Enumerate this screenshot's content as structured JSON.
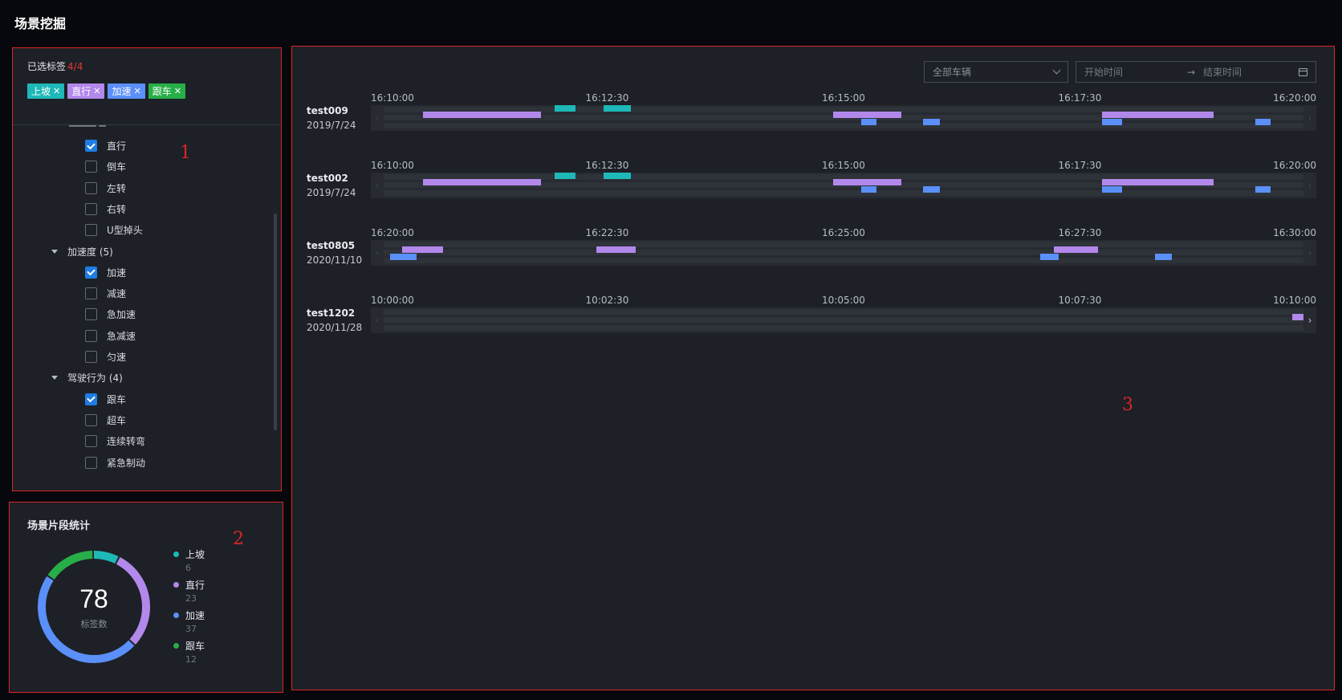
{
  "page": {
    "title": "场景挖掘"
  },
  "colors": {
    "uphill": "#1fb8b8",
    "straight": "#b388eb",
    "accel": "#5b8ff9",
    "follow": "#27ae48",
    "region_border": "#d92626"
  },
  "regions": {
    "r1": "1",
    "r2": "2",
    "r3": "3"
  },
  "filter": {
    "title": "已选标签",
    "count": "4/4",
    "chips": [
      {
        "label": "上坡",
        "color": "#1fb8b8"
      },
      {
        "label": "直行",
        "color": "#b388eb"
      },
      {
        "label": "加速",
        "color": "#5b8ff9"
      },
      {
        "label": "跟车",
        "color": "#27ae48"
      }
    ],
    "tree": [
      {
        "kind": "leaf",
        "label": "直行",
        "checked": true
      },
      {
        "kind": "leaf",
        "label": "倒车",
        "checked": false
      },
      {
        "kind": "leaf",
        "label": "左转",
        "checked": false
      },
      {
        "kind": "leaf",
        "label": "右转",
        "checked": false
      },
      {
        "kind": "leaf",
        "label": "U型掉头",
        "checked": false
      },
      {
        "kind": "group",
        "label": "加速度 (5)"
      },
      {
        "kind": "leaf",
        "label": "加速",
        "checked": true
      },
      {
        "kind": "leaf",
        "label": "减速",
        "checked": false
      },
      {
        "kind": "leaf",
        "label": "急加速",
        "checked": false
      },
      {
        "kind": "leaf",
        "label": "急减速",
        "checked": false
      },
      {
        "kind": "leaf",
        "label": "匀速",
        "checked": false
      },
      {
        "kind": "group",
        "label": "驾驶行为 (4)"
      },
      {
        "kind": "leaf",
        "label": "跟车",
        "checked": true
      },
      {
        "kind": "leaf",
        "label": "超车",
        "checked": false
      },
      {
        "kind": "leaf",
        "label": "连续转弯",
        "checked": false
      },
      {
        "kind": "leaf",
        "label": "紧急制动",
        "checked": false
      }
    ]
  },
  "stats": {
    "title": "场景片段统计",
    "total": "78",
    "total_label": "标签数",
    "items": [
      {
        "name": "上坡",
        "value": 6,
        "color": "#1fb8b8"
      },
      {
        "name": "直行",
        "value": 23,
        "color": "#b388eb"
      },
      {
        "name": "加速",
        "value": 37,
        "color": "#5b8ff9"
      },
      {
        "name": "跟车",
        "value": 12,
        "color": "#27ae48"
      }
    ]
  },
  "toolbar": {
    "vehicle_select": "全部车辆",
    "start_placeholder": "开始时间",
    "end_placeholder": "结束时间"
  },
  "timelines": [
    {
      "vehicle": "test009",
      "date": "2019/7/24",
      "ticks": [
        "16:10:00",
        "16:12:30",
        "16:15:00",
        "16:17:30",
        "16:20:00"
      ],
      "segments": [
        {
          "type": "uphill",
          "row": 0,
          "start": 0.186,
          "end": 0.209
        },
        {
          "type": "uphill",
          "row": 0,
          "start": 0.239,
          "end": 0.269
        },
        {
          "type": "straight",
          "row": 1,
          "start": 0.043,
          "end": 0.171
        },
        {
          "type": "straight",
          "row": 1,
          "start": 0.489,
          "end": 0.563
        },
        {
          "type": "straight",
          "row": 1,
          "start": 0.781,
          "end": 0.902
        },
        {
          "type": "accel",
          "row": 2,
          "start": 0.519,
          "end": 0.536
        },
        {
          "type": "accel",
          "row": 2,
          "start": 0.586,
          "end": 0.605
        },
        {
          "type": "accel",
          "row": 2,
          "start": 0.781,
          "end": 0.803
        },
        {
          "type": "accel",
          "row": 2,
          "start": 0.948,
          "end": 0.964
        }
      ],
      "left_active": false,
      "right_active": false
    },
    {
      "vehicle": "test002",
      "date": "2019/7/24",
      "ticks": [
        "16:10:00",
        "16:12:30",
        "16:15:00",
        "16:17:30",
        "16:20:00"
      ],
      "segments": [
        {
          "type": "uphill",
          "row": 0,
          "start": 0.186,
          "end": 0.209
        },
        {
          "type": "uphill",
          "row": 0,
          "start": 0.239,
          "end": 0.269
        },
        {
          "type": "straight",
          "row": 1,
          "start": 0.043,
          "end": 0.171
        },
        {
          "type": "straight",
          "row": 1,
          "start": 0.489,
          "end": 0.563
        },
        {
          "type": "straight",
          "row": 1,
          "start": 0.781,
          "end": 0.902
        },
        {
          "type": "accel",
          "row": 2,
          "start": 0.519,
          "end": 0.536
        },
        {
          "type": "accel",
          "row": 2,
          "start": 0.586,
          "end": 0.605
        },
        {
          "type": "accel",
          "row": 2,
          "start": 0.781,
          "end": 0.803
        },
        {
          "type": "accel",
          "row": 2,
          "start": 0.948,
          "end": 0.964
        }
      ],
      "left_active": false,
      "right_active": false
    },
    {
      "vehicle": "test0805",
      "date": "2020/11/10",
      "ticks": [
        "16:20:00",
        "16:22:30",
        "16:25:00",
        "16:27:30",
        "16:30:00"
      ],
      "segments": [
        {
          "type": "straight",
          "row": 1,
          "start": 0.02,
          "end": 0.065
        },
        {
          "type": "straight",
          "row": 1,
          "start": 0.231,
          "end": 0.274
        },
        {
          "type": "straight",
          "row": 1,
          "start": 0.729,
          "end": 0.777
        },
        {
          "type": "accel",
          "row": 2,
          "start": 0.007,
          "end": 0.036
        },
        {
          "type": "accel",
          "row": 2,
          "start": 0.714,
          "end": 0.734
        },
        {
          "type": "accel",
          "row": 2,
          "start": 0.839,
          "end": 0.857
        }
      ],
      "left_active": false,
      "right_active": false
    },
    {
      "vehicle": "test1202",
      "date": "2020/11/28",
      "ticks": [
        "10:00:00",
        "10:02:30",
        "10:05:00",
        "10:07:30",
        "10:10:00"
      ],
      "segments": [
        {
          "type": "straight",
          "row": 1,
          "start": 0.988,
          "end": 1.0
        }
      ],
      "left_active": false,
      "right_active": true
    }
  ]
}
